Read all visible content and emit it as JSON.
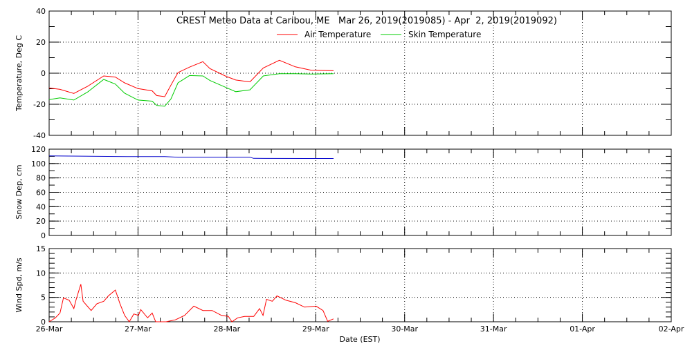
{
  "chart_data": [
    {
      "type": "line",
      "title": "CREST Meteo Data at Caribou, ME   Mar 26, 2019(2019085) - Apr  2, 2019(2019092)",
      "ylabel": "Temperature, Deg C",
      "ylim": [
        -40,
        40
      ],
      "yticks": [
        "40",
        "20",
        "0",
        "-20",
        "-40"
      ],
      "grid": true,
      "legend": "top-center",
      "x": [
        "2019-03-26 00:00",
        "2019-03-26 02:56",
        "2019-03-26 06:40",
        "2019-03-26 10:25",
        "2019-03-26 14:45",
        "2019-03-26 17:53",
        "2019-03-26 20:23",
        "2019-03-27 00:00",
        "2019-03-27 03:50",
        "2019-03-27 05:02",
        "2019-03-27 07:12",
        "2019-03-27 08:53",
        "2019-03-27 10:48",
        "2019-03-27 13:55",
        "2019-03-27 17:31",
        "2019-03-27 19:26",
        "2019-03-27 23:46",
        "2019-03-28 02:24",
        "2019-03-28 06:14",
        "2019-03-28 09:50",
        "2019-03-28 14:10",
        "2019-03-28 18:29",
        "2019-03-28 22:48",
        "2019-03-29 04:48"
      ],
      "series": [
        {
          "name": "Air Temperature",
          "color": "#ff0000",
          "values": [
            -9.5,
            -10.4,
            -13,
            -8.4,
            -1.8,
            -2.5,
            -6.2,
            -9.9,
            -11.4,
            -14.4,
            -15.1,
            -7.7,
            0.4,
            3.9,
            7.4,
            3,
            -2,
            -4.4,
            -5.6,
            3.4,
            8.3,
            4.1,
            1.9,
            1.6
          ]
        },
        {
          "name": "Skin Temperature",
          "color": "#00cc00",
          "values": [
            -17,
            -15.9,
            -17.3,
            -12.1,
            -4,
            -7,
            -12.9,
            -17.3,
            -18,
            -20.7,
            -21.3,
            -16.6,
            -6.2,
            -1.5,
            -1.8,
            -4.7,
            -9.2,
            -11.9,
            -10.7,
            -1.8,
            -0.3,
            -0.3,
            -0.6,
            -0.3
          ]
        }
      ]
    },
    {
      "type": "line",
      "ylabel": "Snow Dep, cm",
      "ylim": [
        0,
        120
      ],
      "yticks": [
        "120",
        "100",
        "80",
        "60",
        "40",
        "20",
        "0"
      ],
      "grid": true,
      "x": [
        "2019-03-26 00:00",
        "2019-03-26 21:00",
        "2019-03-27 00:00",
        "2019-03-27 07:12",
        "2019-03-27 10:48",
        "2019-03-27 23:31",
        "2019-03-28 06:14",
        "2019-03-28 07:12",
        "2019-03-28 21:36",
        "2019-03-29 04:48"
      ],
      "series": [
        {
          "color": "#0000cc",
          "values": [
            110.7,
            109.7,
            109.7,
            109.7,
            108.8,
            108.8,
            108.8,
            107.2,
            107,
            107
          ]
        }
      ]
    },
    {
      "type": "line",
      "ylabel": "Wind Spd, m/s",
      "xlabel": "Date (EST)",
      "ylim": [
        0,
        15
      ],
      "yticks": [
        "15",
        "10",
        "5",
        "0"
      ],
      "xticks": [
        "26-Mar",
        "27-Mar",
        "28-Mar",
        "29-Mar",
        "30-Mar",
        "31-Mar",
        "01-Apr",
        "02-Apr"
      ],
      "xlim": [
        "2019-03-26 00:00",
        "2019-04-02 00:00"
      ],
      "grid": true,
      "x": [
        "2019-03-26 00:00",
        "2019-03-26 01:41",
        "2019-03-26 02:56",
        "2019-03-26 03:52",
        "2019-03-26 05:25",
        "2019-03-26 06:40",
        "2019-03-26 07:18",
        "2019-03-26 08:33",
        "2019-03-26 09:10",
        "2019-03-26 11:21",
        "2019-03-26 12:54",
        "2019-03-26 14:45",
        "2019-03-26 16:00",
        "2019-03-26 17:53",
        "2019-03-26 19:08",
        "2019-03-26 20:23",
        "2019-03-26 21:38",
        "2019-03-26 22:52",
        "2019-03-27 00:07",
        "2019-03-27 00:45",
        "2019-03-27 02:35",
        "2019-03-27 03:50",
        "2019-03-27 04:47",
        "2019-03-27 07:35",
        "2019-03-27 10:05",
        "2019-03-27 12:34",
        "2019-03-27 15:04",
        "2019-03-27 17:33",
        "2019-03-27 20:02",
        "2019-03-27 22:32",
        "2019-03-28 00:24",
        "2019-03-28 01:21",
        "2019-03-28 02:54",
        "2019-03-28 04:47",
        "2019-03-28 07:16",
        "2019-03-28 08:50",
        "2019-03-28 09:46",
        "2019-03-28 10:42",
        "2019-03-28 12:16",
        "2019-03-28 13:31",
        "2019-03-28 16:00",
        "2019-03-28 18:29",
        "2019-03-28 20:59",
        "2019-03-29 00:06",
        "2019-03-29 01:58",
        "2019-03-29 03:13",
        "2019-03-29 04:47"
      ],
      "series": [
        {
          "color": "#ff0000",
          "values": [
            0,
            0.8,
            1.8,
            4.9,
            4.4,
            2.7,
            4.6,
            7.7,
            4.2,
            2.3,
            3.7,
            4.2,
            5.3,
            6.5,
            3.7,
            1.3,
            0,
            1.6,
            1.3,
            2.5,
            0.8,
            1.8,
            0,
            0,
            0.4,
            1.3,
            3.2,
            2.3,
            2.3,
            1.3,
            1.1,
            0,
            0.8,
            1.1,
            1.1,
            2.7,
            1.3,
            4.6,
            4.2,
            5.3,
            4.4,
            3.9,
            3,
            3.2,
            2.3,
            0.1,
            0.6
          ]
        }
      ]
    }
  ]
}
